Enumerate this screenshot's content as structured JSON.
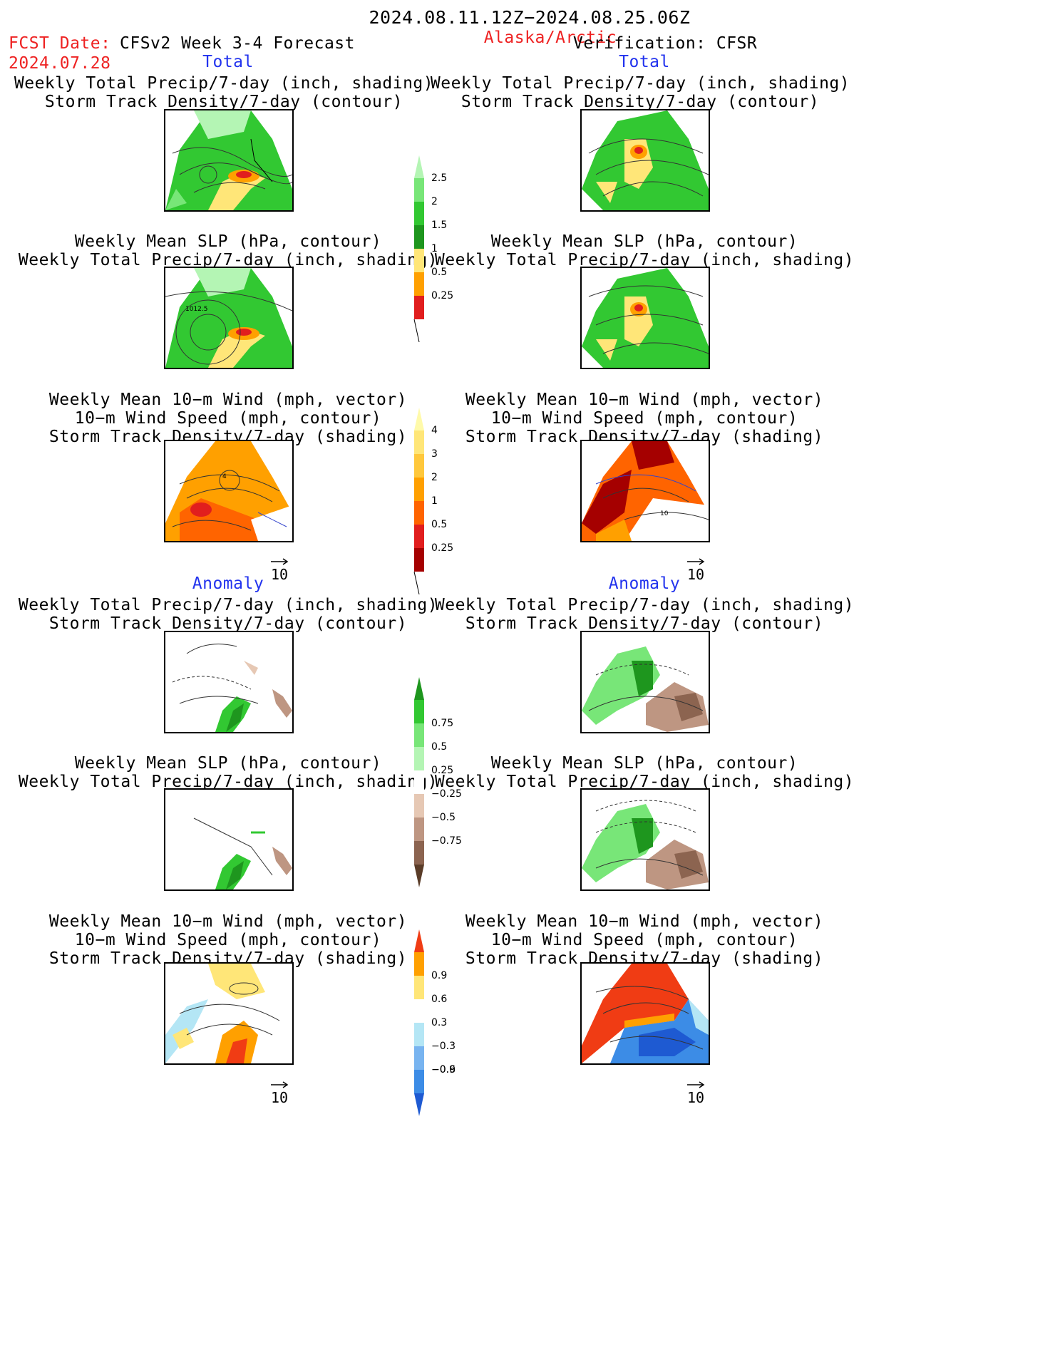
{
  "header": {
    "period": "2024.08.11.12Z−2024.08.25.06Z",
    "fcst_label": "FCST Date:",
    "fcst_date": "2024.07.28",
    "model": "CFSv2 Week 3-4 Forecast",
    "region": "Alaska/Arctic",
    "verification": "Verification: CFSR"
  },
  "sections": {
    "left_total": "Total",
    "right_total": "Total",
    "left_anomaly": "Anomaly",
    "right_anomaly": "Anomaly"
  },
  "panel_titles": {
    "precip_storm": [
      "Weekly Total Precip/7-day (inch, shading)",
      "Storm Track Density/7-day (contour)"
    ],
    "slp_precip": [
      "Weekly Mean SLP (hPa, contour)",
      "Weekly Total Precip/7-day (inch, shading)"
    ],
    "wind": [
      "Weekly Mean 10−m Wind (mph, vector)",
      "10−m Wind Speed (mph, contour)",
      "Storm Track Density/7-day (shading)"
    ]
  },
  "map_labels": {
    "slp_contour": "1012.5",
    "wind_total_left": "4",
    "wind_total_right": "10"
  },
  "vector_ref": "10",
  "colorbars": {
    "precip_total": {
      "labels": [
        "0.25",
        "0.5",
        "1",
        "1.5",
        "2",
        "2.5"
      ],
      "colors": [
        "#b4f5b4",
        "#78e678",
        "#32c832",
        "#1e961e",
        "#ffe678",
        "#ffa000",
        "#e11e1e"
      ]
    },
    "storm_total": {
      "labels": [
        "0.25",
        "0.5",
        "1",
        "2",
        "3",
        "4"
      ],
      "colors": [
        "#fffaaa",
        "#ffe678",
        "#ffc83c",
        "#ffa000",
        "#ff6400",
        "#e11e1e",
        "#a50000"
      ]
    },
    "precip_anom": {
      "labels": [
        "0.75",
        "0.5",
        "0.25",
        "−0.25",
        "−0.5",
        "−0.75"
      ],
      "colors": [
        "#1e961e",
        "#32c832",
        "#78e678",
        "#b4f5b4",
        "#ffffff",
        "#e6c8b4",
        "#be9682",
        "#8c6450",
        "#5a3c28"
      ]
    },
    "storm_anom": {
      "labels": [
        "0.9",
        "0.6",
        "0.3",
        "−0.3",
        "−0.6",
        "−0.9"
      ],
      "colors": [
        "#f03c14",
        "#ffa000",
        "#ffe678",
        "#ffffff",
        "#b4e6f5",
        "#78b4f0",
        "#3c8ce6",
        "#1e5ad2"
      ]
    }
  }
}
